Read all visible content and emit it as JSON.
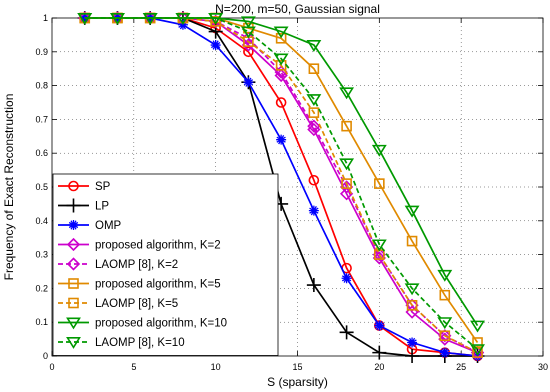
{
  "chart_data": {
    "type": "line",
    "title": "N=200, m=50, Gaussian signal",
    "xlabel": "S (sparsity)",
    "ylabel": "Frequency of Exact Reconstruction",
    "xlim": [
      0,
      30
    ],
    "ylim": [
      0,
      1
    ],
    "xticks": [
      0,
      5,
      10,
      15,
      20,
      25,
      30
    ],
    "yticks": [
      0,
      0.1,
      0.2,
      0.3,
      0.4,
      0.5,
      0.6,
      0.7,
      0.8,
      0.9,
      1
    ],
    "xtick_labels": [
      "0",
      "5",
      "10",
      "15",
      "20",
      "25",
      "30"
    ],
    "ytick_labels": [
      "0",
      "0.1",
      "0.2",
      "0.3",
      "0.4",
      "0.5",
      "0.6",
      "0.7",
      "0.8",
      "0.9",
      "1"
    ],
    "grid": true,
    "legend_position": "bottom-left",
    "x": [
      2,
      4,
      6,
      8,
      10,
      12,
      14,
      16,
      18,
      20,
      22,
      24,
      26
    ],
    "series": [
      {
        "name": "SP",
        "color": "#ff0000",
        "marker": "circle",
        "dash": "solid",
        "values": [
          1.0,
          1.0,
          1.0,
          1.0,
          0.97,
          0.9,
          0.75,
          0.52,
          0.26,
          0.09,
          0.02,
          0.01,
          0.0
        ]
      },
      {
        "name": "LP",
        "color": "#000000",
        "marker": "plus",
        "dash": "solid",
        "values": [
          1.0,
          1.0,
          1.0,
          1.0,
          0.96,
          0.81,
          0.45,
          0.21,
          0.07,
          0.01,
          0.0,
          0.0,
          0.0
        ]
      },
      {
        "name": "OMP",
        "color": "#0000ff",
        "marker": "star",
        "dash": "solid",
        "values": [
          1.0,
          1.0,
          1.0,
          0.98,
          0.92,
          0.81,
          0.64,
          0.43,
          0.23,
          0.09,
          0.04,
          0.01,
          0.0
        ]
      },
      {
        "name": "proposed algorithm, K=2",
        "color": "#cc00cc",
        "marker": "diamond",
        "dash": "solid",
        "values": [
          1.0,
          1.0,
          1.0,
          1.0,
          0.99,
          0.92,
          0.83,
          0.67,
          0.48,
          0.29,
          0.13,
          0.05,
          0.01
        ]
      },
      {
        "name": "LAOMP [8], K=2",
        "color": "#cc00cc",
        "marker": "diamond",
        "dash": "dashed",
        "values": [
          1.0,
          1.0,
          1.0,
          1.0,
          0.99,
          0.94,
          0.84,
          0.68,
          0.5,
          0.3,
          0.15,
          0.06,
          0.01
        ]
      },
      {
        "name": "proposed algorithm, K=5",
        "color": "#e08a00",
        "marker": "square",
        "dash": "solid",
        "values": [
          1.0,
          1.0,
          1.0,
          1.0,
          1.0,
          0.97,
          0.94,
          0.85,
          0.68,
          0.51,
          0.34,
          0.18,
          0.04
        ]
      },
      {
        "name": "LAOMP [8], K=5",
        "color": "#e08a00",
        "marker": "square",
        "dash": "dashed",
        "values": [
          1.0,
          1.0,
          1.0,
          1.0,
          0.99,
          0.93,
          0.86,
          0.72,
          0.51,
          0.3,
          0.15,
          0.06,
          0.01
        ]
      },
      {
        "name": "proposed algorithm, K=10",
        "color": "#009900",
        "marker": "triangle-down",
        "dash": "solid",
        "values": [
          1.0,
          1.0,
          1.0,
          1.0,
          1.0,
          0.99,
          0.96,
          0.92,
          0.78,
          0.61,
          0.43,
          0.24,
          0.09
        ]
      },
      {
        "name": "LAOMP [8], K=10",
        "color": "#009900",
        "marker": "triangle-down",
        "dash": "dashed",
        "values": [
          1.0,
          1.0,
          1.0,
          1.0,
          1.0,
          0.96,
          0.88,
          0.76,
          0.57,
          0.33,
          0.2,
          0.1,
          0.02
        ]
      }
    ]
  }
}
